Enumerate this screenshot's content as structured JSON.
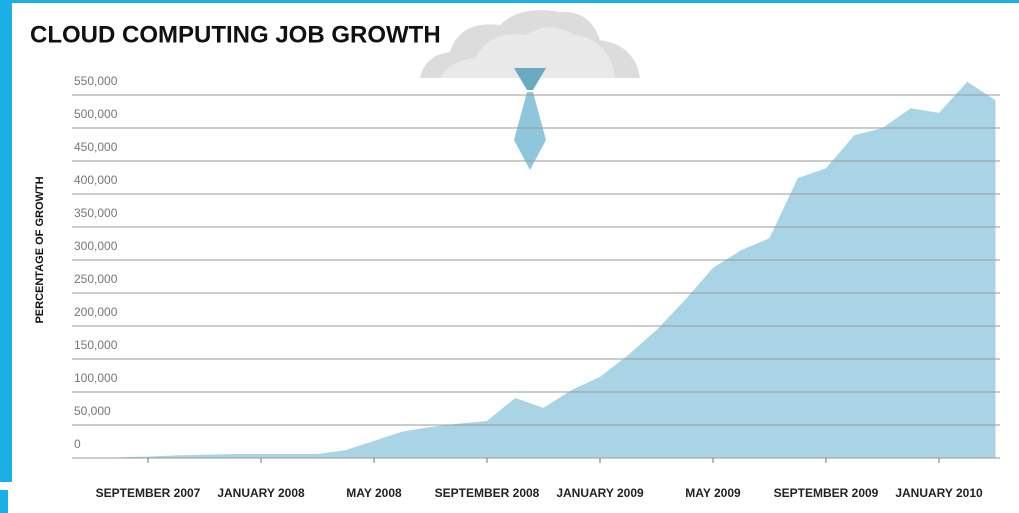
{
  "chart_data": {
    "type": "area",
    "title": "CLOUD COMPUTING JOB GROWTH",
    "y_label": "PERCENTAGE OF GROWTH",
    "color": "#a9d4e5",
    "grid": true,
    "x": [
      "2007-07",
      "2007-08",
      "2007-09",
      "2007-10",
      "2007-11",
      "2007-12",
      "2008-01",
      "2008-02",
      "2008-03",
      "2008-04",
      "2008-05",
      "2008-06",
      "2008-07",
      "2008-08",
      "2008-09",
      "2008-10",
      "2008-11",
      "2008-12",
      "2009-01",
      "2009-02",
      "2009-03",
      "2009-04",
      "2009-05",
      "2009-06",
      "2009-07",
      "2009-08",
      "2009-09",
      "2009-10",
      "2009-11",
      "2009-12",
      "2010-01",
      "2010-02",
      "2010-03"
    ],
    "values": [
      0,
      1000,
      2000,
      4000,
      5000,
      6000,
      6000,
      6000,
      6000,
      12000,
      26000,
      40000,
      47000,
      52000,
      56000,
      91000,
      76000,
      103000,
      123000,
      156000,
      194000,
      239000,
      288000,
      315000,
      333000,
      424000,
      439000,
      489000,
      500000,
      530000,
      523000,
      570000,
      542000
    ],
    "xlim": [
      "2007-07",
      "2010-03"
    ],
    "xticks": [
      {
        "value": "2007-09",
        "label": "SEPTEMBER 2007"
      },
      {
        "value": "2008-01",
        "label": "JANUARY 2008"
      },
      {
        "value": "2008-05",
        "label": "MAY 2008"
      },
      {
        "value": "2008-09",
        "label": "SEPTEMBER 2008"
      },
      {
        "value": "2009-01",
        "label": "JANUARY 2009"
      },
      {
        "value": "2009-05",
        "label": "MAY 2009"
      },
      {
        "value": "2009-09",
        "label": "SEPTEMBER 2009"
      },
      {
        "value": "2010-01",
        "label": "JANUARY 2010"
      }
    ],
    "ylim": [
      0,
      550000
    ],
    "yticks": [
      0,
      {
        "value": 50000,
        "label": "50,000"
      },
      {
        "value": 100000,
        "label": "100,000"
      },
      {
        "value": 150000,
        "label": "150,000"
      },
      {
        "value": 200000,
        "label": "200,000"
      },
      {
        "value": 250000,
        "label": "250,000"
      },
      {
        "value": 300000,
        "label": "300,000"
      },
      {
        "value": 350000,
        "label": "350,000"
      },
      {
        "value": 400000,
        "label": "400,000"
      },
      {
        "value": 450000,
        "label": "450,000"
      },
      {
        "value": 500000,
        "label": "500,000"
      },
      {
        "value": 550000,
        "label": "550,000"
      }
    ]
  }
}
